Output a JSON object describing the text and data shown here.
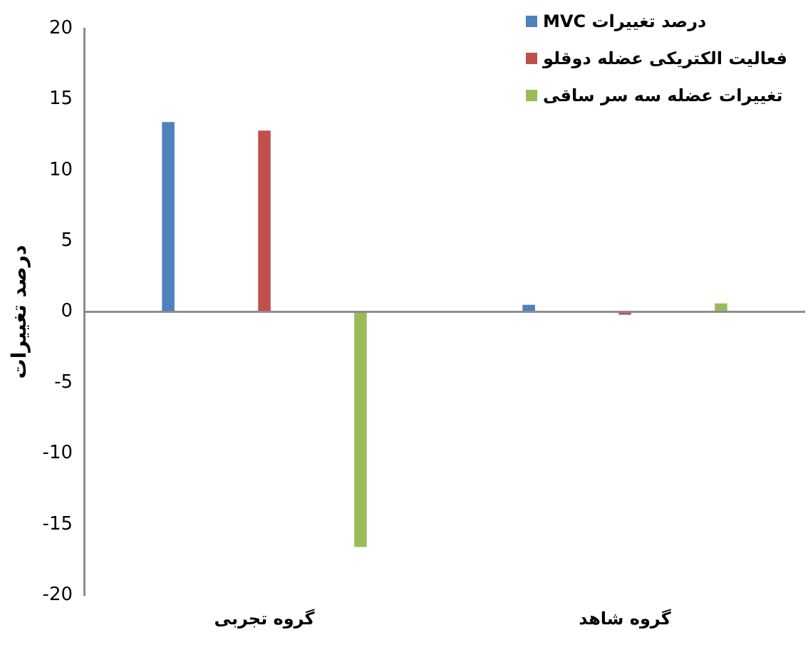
{
  "chart_data": {
    "type": "bar",
    "ylabel": "درصد تغییرات",
    "categories": [
      "گروه تجربی",
      "گروه شاهد"
    ],
    "series": [
      {
        "name": "درصد تغییرات MVC",
        "color": "#4f81bd",
        "values": [
          13.4,
          0.5
        ]
      },
      {
        "name": "فعالیت الکتریکی عضله دوقلو",
        "color": "#c0504d",
        "values": [
          12.8,
          -0.2
        ]
      },
      {
        "name": "تغییرات عضله سه سر ساقی",
        "color": "#9bbb59",
        "values": [
          -16.6,
          0.6
        ]
      }
    ],
    "ylim": [
      -20,
      20
    ],
    "yticks": [
      -20,
      -15,
      -10,
      -5,
      0,
      5,
      10,
      15,
      20
    ],
    "legend": "top right"
  }
}
